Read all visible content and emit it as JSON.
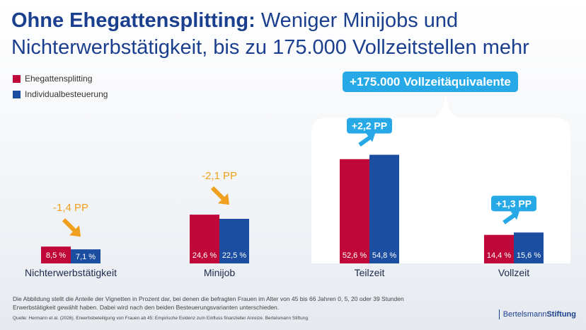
{
  "title": {
    "bold": "Ohne Ehegattensplitting:",
    "regular": " Weniger Minijobs und Nichterwerbstätigkeit, bis zu 175.000 Vollzeitstellen mehr"
  },
  "total_badge": "+175.000 Vollzeitäquivalente",
  "chart_data": {
    "type": "bar",
    "categories": [
      "Nichterwerbstätigkeit",
      "Minijob",
      "Teilzeit",
      "Vollzeit"
    ],
    "series": [
      {
        "name": "Ehegattensplitting",
        "color": "#c0073a",
        "values": [
          8.5,
          24.6,
          52.6,
          14.4
        ],
        "labels": [
          "8,5 %",
          "24,6 %",
          "52,6 %",
          "14,4 %"
        ]
      },
      {
        "name": "Individualbesteuerung",
        "color": "#1b4da0",
        "values": [
          7.1,
          22.5,
          54.8,
          15.6
        ],
        "labels": [
          "7,1 %",
          "22,5 %",
          "54,8 %",
          "15,6 %"
        ]
      }
    ],
    "changes": [
      {
        "label": "-1,4 PP",
        "direction": "down",
        "color": "#f0a01e"
      },
      {
        "label": "-2,1 PP",
        "direction": "down",
        "color": "#f0a01e"
      },
      {
        "label": "+2,2 PP",
        "direction": "up",
        "color": "#27a9e8"
      },
      {
        "label": "+1,3 PP",
        "direction": "up",
        "color": "#27a9e8"
      }
    ],
    "title": "",
    "xlabel": "",
    "ylabel": "",
    "ylim": [
      0,
      60
    ],
    "grid": false,
    "legend": "top-left"
  },
  "note": "Die Abbildung stellt die Anteile der Vignetten in Prozent dar, bei denen die befragten Frauen im Alter von 45 bis 66 Jahren 0, 5, 20 oder 39 Stunden Erwerbstätigkeit gewählt haben. Dabei wird nach den beiden Besteuerungsvarianten unterschieden.",
  "source": "Quelle: Hermann et al. (2026). Erwerbsbeteiligung von Frauen ab 45: Empirische Evidenz zum Einfluss finanzieller Anreize. Bertelsmann Stiftung.",
  "logo": {
    "part1": "Bertelsmann",
    "part2": "Stiftung"
  }
}
